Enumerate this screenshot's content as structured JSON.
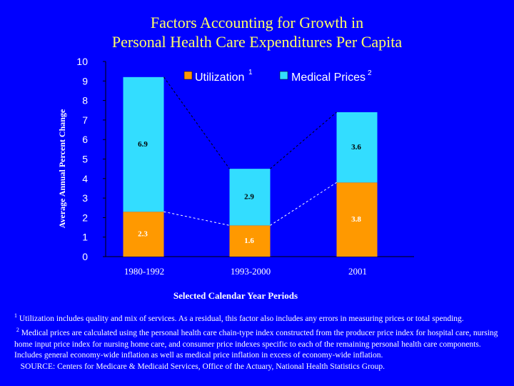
{
  "title": {
    "line1": "Factors Accounting for Growth in",
    "line2": "Personal Health Care Expenditures Per Capita"
  },
  "colors": {
    "background": "#0000ff",
    "title": "#ffff66",
    "utilization": "#ff9900",
    "medical_prices": "#33ddff",
    "text": "#ffffff"
  },
  "chart_data": {
    "type": "bar",
    "stacked": true,
    "categories": [
      "1980-1992",
      "1993-2000",
      "2001"
    ],
    "series": [
      {
        "name": "Utilization",
        "superscript": "1",
        "values": [
          2.3,
          1.6,
          3.8
        ],
        "labels": [
          "2.3",
          "1.6",
          "3.8"
        ]
      },
      {
        "name": "Medical Prices",
        "superscript": "2",
        "values": [
          6.9,
          2.9,
          3.6
        ],
        "labels": [
          "6.9",
          "2.9",
          "3.6"
        ]
      }
    ],
    "title": "Factors Accounting for Growth in Personal Health Care Expenditures Per Capita",
    "xlabel": "Selected Calendar Year Periods",
    "ylabel": "Average Annual Percent Change",
    "ylim": [
      0,
      10
    ],
    "yticks": [
      "0",
      "1",
      "2",
      "3",
      "4",
      "5",
      "6",
      "7",
      "8",
      "9",
      "10"
    ],
    "legend": "top",
    "connector_lines": "dashed"
  },
  "notes": {
    "n1_mark": "1",
    "n1": "Utilization includes quality and mix of services.  As a residual, this factor also includes any errors in measuring prices or total spending.",
    "n2_mark": "2",
    "n2": "Medical  prices are calculated using the personal health care chain-type index constructed from the producer price index for hospital care, nursing home input price index for nursing home care, and consumer price indexes specific to each of the remaining personal health care components.  Includes general economy-wide inflation as well as medical price inflation in excess of economy-wide inflation.",
    "source": "SOURCE: Centers for Medicare & Medicaid Services, Office of the Actuary, National Health Statistics Group."
  }
}
